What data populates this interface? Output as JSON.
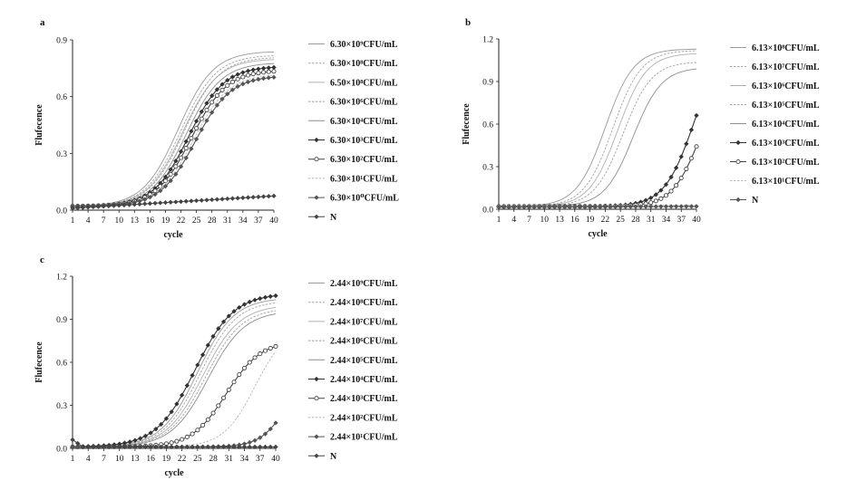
{
  "chart_data": [
    {
      "type": "line",
      "panel_label": "a",
      "xlabel": "cycle",
      "ylabel": "Flufecence",
      "xlim": [
        1,
        40
      ],
      "ylim": [
        0,
        0.9
      ],
      "x_ticks": [
        1,
        4,
        7,
        10,
        13,
        16,
        19,
        22,
        25,
        28,
        31,
        34,
        37,
        40
      ],
      "y_ticks": [
        "0.0",
        "0.3",
        "0.6",
        "0.9"
      ],
      "legend_position": "right",
      "series": [
        {
          "name": "6.30×10⁹CFU/mL",
          "marker": "none",
          "baseline": 0.02,
          "plateau": 0.84,
          "midpoint": 21.5,
          "slope": 3.4
        },
        {
          "name": "6.30×10⁸CFU/mL",
          "marker": "none",
          "baseline": 0.02,
          "plateau": 0.82,
          "midpoint": 22.0,
          "slope": 3.4
        },
        {
          "name": "6.50×10⁸CFU/mL",
          "marker": "none",
          "baseline": 0.02,
          "plateau": 0.8,
          "midpoint": 22.3,
          "slope": 3.4
        },
        {
          "name": "6.30×10⁶CFU/mL",
          "marker": "none",
          "baseline": 0.02,
          "plateau": 0.81,
          "midpoint": 22.6,
          "slope": 3.4
        },
        {
          "name": "6.30×10⁴CFU/mL",
          "marker": "none",
          "baseline": 0.02,
          "plateau": 0.78,
          "midpoint": 23.0,
          "slope": 3.4
        },
        {
          "name": "6.30×10³CFU/mL",
          "marker": "diamond",
          "baseline": 0.02,
          "plateau": 0.76,
          "midpoint": 23.5,
          "slope": 3.4
        },
        {
          "name": "6.30×10²CFU/mL",
          "marker": "circle",
          "baseline": 0.02,
          "plateau": 0.74,
          "midpoint": 24.0,
          "slope": 3.4
        },
        {
          "name": "6.30×10¹CFU/mL",
          "marker": "none",
          "baseline": 0.02,
          "plateau": 0.72,
          "midpoint": 24.4,
          "slope": 3.4
        },
        {
          "name": "6.30×10⁰CFU/mL",
          "marker": "diamond",
          "baseline": 0.02,
          "plateau": 0.71,
          "midpoint": 24.8,
          "slope": 3.4
        },
        {
          "name": "N",
          "marker": "diamond",
          "linear": [
            0.01,
            0.075
          ]
        }
      ]
    },
    {
      "type": "line",
      "panel_label": "b",
      "xlabel": "cycle",
      "ylabel": "Flufecence",
      "xlim": [
        1,
        40
      ],
      "ylim": [
        0,
        1.2
      ],
      "x_ticks": [
        1,
        4,
        7,
        10,
        13,
        16,
        19,
        22,
        25,
        28,
        31,
        34,
        37,
        40
      ],
      "y_ticks": [
        "0.0",
        "0.3",
        "0.6",
        "0.9",
        "1.2"
      ],
      "legend_position": "right",
      "series": [
        {
          "name": "6.13×10⁸CFU/mL",
          "marker": "none",
          "baseline": 0.02,
          "plateau": 1.13,
          "midpoint": 22.0,
          "slope": 2.8
        },
        {
          "name": "6.13×10⁷CFU/mL",
          "marker": "none",
          "baseline": 0.02,
          "plateau": 1.12,
          "midpoint": 23.5,
          "slope": 2.8
        },
        {
          "name": "6.13×10⁶CFU/mL",
          "marker": "none",
          "baseline": 0.02,
          "plateau": 1.1,
          "midpoint": 24.5,
          "slope": 2.8
        },
        {
          "name": "6.13×10⁵CFU/mL",
          "marker": "none",
          "baseline": 0.02,
          "plateau": 1.04,
          "midpoint": 25.5,
          "slope": 2.8
        },
        {
          "name": "6.13×10⁴CFU/mL",
          "marker": "none",
          "baseline": 0.02,
          "plateau": 1.0,
          "midpoint": 27.5,
          "slope": 2.8
        },
        {
          "name": "6.13×10³CFU/mL",
          "marker": "diamond",
          "baseline": 0.02,
          "plateau": 1.2,
          "midpoint": 39.5,
          "slope": 2.9
        },
        {
          "name": "6.13×10²CFU/mL",
          "marker": "circle",
          "baseline": 0.02,
          "plateau": 0.95,
          "midpoint": 40.5,
          "slope": 2.7
        },
        {
          "name": "6.13×10¹CFU/mL",
          "marker": "none",
          "linear": [
            0.02,
            0.03
          ]
        },
        {
          "name": "N",
          "marker": "diamond",
          "linear": [
            0.015,
            0.02
          ]
        }
      ]
    },
    {
      "type": "line",
      "panel_label": "c",
      "xlabel": "cycle",
      "ylabel": "Flufecence",
      "xlim": [
        1,
        40
      ],
      "ylim": [
        0,
        1.2
      ],
      "x_ticks": [
        1,
        4,
        7,
        10,
        13,
        16,
        19,
        22,
        25,
        28,
        31,
        34,
        37,
        40
      ],
      "y_ticks": [
        "0.0",
        "0.3",
        "0.6",
        "0.9",
        "1.2"
      ],
      "legend_position": "right",
      "series": [
        {
          "name": "2.44×10⁹CFU/mL",
          "marker": "none",
          "baseline": 0.01,
          "plateau": 1.05,
          "midpoint": 25.0,
          "slope": 3.5
        },
        {
          "name": "2.44×10⁸CFU/mL",
          "marker": "none",
          "baseline": 0.01,
          "plateau": 1.03,
          "midpoint": 25.5,
          "slope": 3.5
        },
        {
          "name": "2.44×10⁷CFU/mL",
          "marker": "none",
          "baseline": 0.01,
          "plateau": 1.0,
          "midpoint": 26.0,
          "slope": 3.5
        },
        {
          "name": "2.44×10⁶CFU/mL",
          "marker": "none",
          "baseline": 0.01,
          "plateau": 0.98,
          "midpoint": 26.5,
          "slope": 3.5
        },
        {
          "name": "2.44×10⁵CFU/mL",
          "marker": "none",
          "baseline": 0.01,
          "plateau": 0.96,
          "midpoint": 27.0,
          "slope": 3.5
        },
        {
          "name": "2.44×10⁴CFU/mL",
          "marker": "diamond",
          "baseline": 0.01,
          "plateau": 1.08,
          "midpoint": 24.5,
          "slope": 3.7
        },
        {
          "name": "2.44×10³CFU/mL",
          "marker": "circle",
          "baseline": 0.01,
          "plateau": 0.75,
          "midpoint": 30.5,
          "slope": 3.3
        },
        {
          "name": "2.44×10²CFU/mL",
          "marker": "none",
          "baseline": 0.01,
          "plateau": 0.85,
          "midpoint": 36.0,
          "slope": 3.0
        },
        {
          "name": "2.44×10¹CFU/mL",
          "marker": "diamond",
          "baseline": 0.01,
          "plateau": 0.55,
          "midpoint": 42.0,
          "slope": 2.5
        },
        {
          "name": "N",
          "marker": "diamond",
          "linear": [
            0.01,
            0.01
          ],
          "start_bump": 0.05
        }
      ]
    }
  ]
}
